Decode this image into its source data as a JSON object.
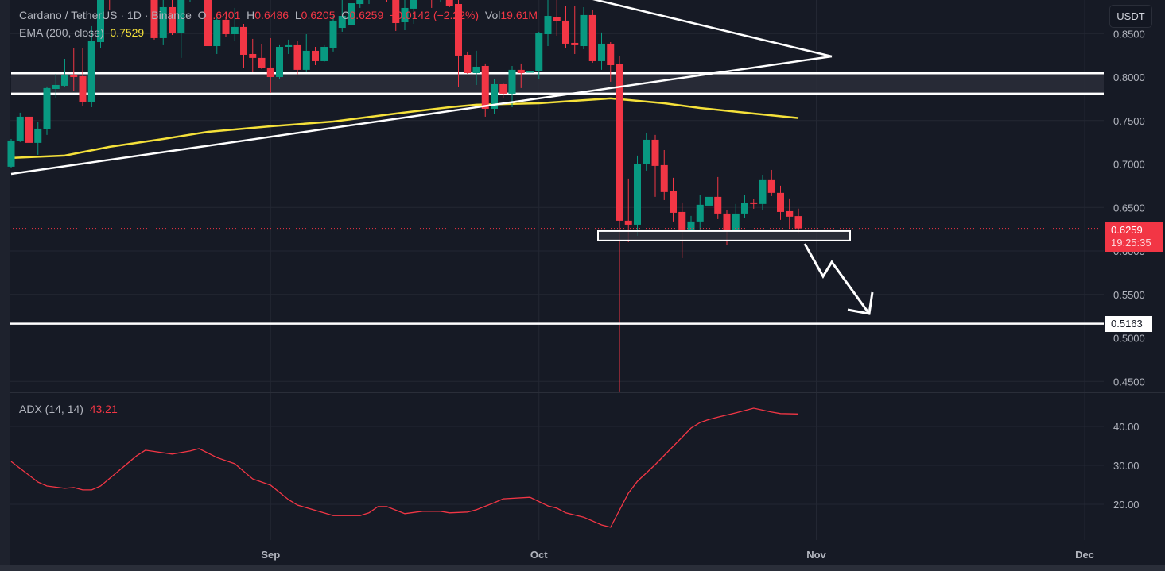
{
  "header": {
    "symbol": "Cardano / TetherUS · 1D · Binance",
    "o_label": "O",
    "o": "0.6401",
    "h_label": "H",
    "h": "0.6486",
    "l_label": "L",
    "l": "0.6205",
    "c_label": "C",
    "c": "0.6259",
    "change": "−0.0142 (−2.22%)",
    "vol_label": "Vol",
    "vol": "19.61M",
    "ema_label": "EMA (200, close)",
    "ema_value": "0.7529"
  },
  "currency_button": "USDT",
  "last_price": {
    "value": "0.6259",
    "countdown": "19:25:35"
  },
  "level_label": "0.5163",
  "adx_legend": {
    "label": "ADX (14, 14)",
    "value": "43.21"
  },
  "colors": {
    "up": "#089981",
    "down": "#f23645",
    "ema": "#f5e13a",
    "adx": "#f23645",
    "drawing": "#ffffff",
    "background": "#161a25"
  },
  "chart_data": [
    {
      "type": "candlestick",
      "title": "Cardano / TetherUS · 1D · Binance",
      "price_ticks": [
        "0.8500",
        "0.8000",
        "0.7500",
        "0.7000",
        "0.6500",
        "0.6000",
        "0.5500",
        "0.5000",
        "0.4500"
      ],
      "x_ticks": [
        "Sep",
        "Oct",
        "Nov",
        "Dec"
      ],
      "ylim": [
        0.44,
        0.89
      ],
      "grid": true,
      "candles_columns": [
        "date",
        "open",
        "high",
        "low",
        "close"
      ],
      "candles": [
        [
          "Aug 3",
          0.6969,
          0.7288,
          0.695,
          0.727
        ],
        [
          "Aug 4",
          0.7261,
          0.759,
          0.7252,
          0.7544
        ],
        [
          "Aug 5",
          0.7544,
          0.7599,
          0.7133,
          0.7243
        ],
        [
          "Aug 6",
          0.7243,
          0.748,
          0.7106,
          0.7407
        ],
        [
          "Aug 7",
          0.7398,
          0.7891,
          0.7334,
          0.7873
        ],
        [
          "Aug 8",
          0.7863,
          0.8037,
          0.7754,
          0.7909
        ],
        [
          "Aug 9",
          0.79,
          0.821,
          0.7891,
          0.8028
        ],
        [
          "Aug 10",
          0.8028,
          0.8338,
          0.7836,
          0.8
        ],
        [
          "Aug 11",
          0.801,
          0.8338,
          0.7663,
          0.7717
        ],
        [
          "Aug 12",
          0.7717,
          0.8585,
          0.7653,
          0.8411
        ],
        [
          "Aug 13",
          0.8402,
          0.9114,
          0.8329,
          0.9023
        ],
        [
          "Aug 14",
          0.916,
          0.9343,
          0.8776,
          0.8932
        ],
        [
          "Aug 15",
          0.9069,
          0.9343,
          0.8913,
          0.9206
        ],
        [
          "Aug 16",
          0.9206,
          0.9434,
          0.8959,
          0.9023
        ],
        [
          "Aug 17",
          0.9023,
          0.9251,
          0.8886,
          0.916
        ],
        [
          "Aug 18",
          0.916,
          0.9297,
          0.8932,
          0.8977
        ],
        [
          "Aug 19",
          0.8977,
          0.9069,
          0.843,
          0.8448
        ],
        [
          "Aug 20",
          0.8448,
          0.8932,
          0.8366,
          0.8804
        ],
        [
          "Aug 21",
          0.8804,
          0.8932,
          0.8484,
          0.8503
        ],
        [
          "Aug 22",
          0.8503,
          0.9069,
          0.822,
          0.8932
        ],
        [
          "Aug 23",
          0.8932,
          0.9251,
          0.8868,
          0.916
        ],
        [
          "Aug 24",
          0.916,
          0.9297,
          0.8932,
          0.9069
        ],
        [
          "Aug 25",
          0.9069,
          0.9251,
          0.8302,
          0.8356
        ],
        [
          "Aug 26",
          0.8356,
          0.8703,
          0.8265,
          0.8658
        ],
        [
          "Aug 27",
          0.8658,
          0.8685,
          0.8466,
          0.8493
        ],
        [
          "Aug 28",
          0.8493,
          0.8795,
          0.8411,
          0.8576
        ],
        [
          "Aug 29",
          0.8576,
          0.8612,
          0.8101,
          0.8256
        ],
        [
          "Aug 30",
          0.8265,
          0.8439,
          0.8055,
          0.822
        ],
        [
          "Aug 31",
          0.822,
          0.8375,
          0.8092,
          0.8101
        ],
        [
          "Sep 1",
          0.811,
          0.8448,
          0.7818,
          0.8
        ],
        [
          "Sep 2",
          0.8,
          0.8366,
          0.7982,
          0.8347
        ],
        [
          "Sep 3",
          0.8347,
          0.843,
          0.8265,
          0.8366
        ],
        [
          "Sep 4",
          0.8366,
          0.8411,
          0.8028,
          0.8083
        ],
        [
          "Sep 5",
          0.8083,
          0.8493,
          0.8055,
          0.8302
        ],
        [
          "Sep 6",
          0.8302,
          0.8347,
          0.8137,
          0.8183
        ],
        [
          "Sep 7",
          0.8183,
          0.8366,
          0.8174,
          0.8347
        ],
        [
          "Sep 8",
          0.8338,
          0.8703,
          0.8293,
          0.8649
        ],
        [
          "Sep 9",
          0.8566,
          0.8886,
          0.8521,
          0.8703
        ],
        [
          "Sep 10",
          0.8594,
          0.8932,
          0.8594,
          0.8849
        ],
        [
          "Sep 11",
          0.884,
          0.9069,
          0.8795,
          0.9023
        ],
        [
          "Sep 12",
          0.9023,
          0.9206,
          0.884,
          0.916
        ],
        [
          "Sep 13",
          0.916,
          0.9251,
          0.8932,
          0.9069
        ],
        [
          "Sep 14",
          0.8977,
          0.9023,
          0.8859,
          0.8886
        ],
        [
          "Sep 15",
          0.8886,
          0.8977,
          0.853,
          0.8621
        ],
        [
          "Sep 16",
          0.863,
          0.8886,
          0.8539,
          0.8795
        ],
        [
          "Sep 17",
          0.8786,
          0.8977,
          0.8612,
          0.8932
        ],
        [
          "Sep 18",
          0.8932,
          0.916,
          0.8886,
          0.9114
        ],
        [
          "Sep 19",
          0.9114,
          0.9206,
          0.8795,
          0.8977
        ],
        [
          "Sep 20",
          0.8932,
          0.9069,
          0.8868,
          0.8996
        ],
        [
          "Sep 21",
          0.8996,
          0.9069,
          0.8804,
          0.8822
        ],
        [
          "Sep 22",
          0.884,
          0.8932,
          0.7882,
          0.8247
        ],
        [
          "Sep 23",
          0.8256,
          0.8293,
          0.8037,
          0.8046
        ],
        [
          "Sep 24",
          0.8046,
          0.8302,
          0.7909,
          0.8119
        ],
        [
          "Sep 25",
          0.8128,
          0.8156,
          0.7544,
          0.7635
        ],
        [
          "Sep 26",
          0.7635,
          0.7973,
          0.7571,
          0.7918
        ],
        [
          "Sep 27",
          0.7918,
          0.7937,
          0.7763,
          0.7809
        ],
        [
          "Sep 28",
          0.7809,
          0.8128,
          0.7653,
          0.8083
        ],
        [
          "Sep 29",
          0.8083,
          0.8156,
          0.7873,
          0.8046
        ],
        [
          "Sep 30",
          0.8055,
          0.8128,
          0.779,
          0.8064
        ],
        [
          "Oct 1",
          0.8064,
          0.8521,
          0.7973,
          0.8503
        ],
        [
          "Oct 2",
          0.8493,
          0.8886,
          0.8356,
          0.8703
        ],
        [
          "Oct 3",
          0.8694,
          0.8886,
          0.8475,
          0.864
        ],
        [
          "Oct 4",
          0.8649,
          0.8822,
          0.8329,
          0.8384
        ],
        [
          "Oct 5",
          0.8393,
          0.8822,
          0.8265,
          0.8366
        ],
        [
          "Oct 6",
          0.8356,
          0.8804,
          0.832,
          0.8713
        ],
        [
          "Oct 7",
          0.8713,
          0.8767,
          0.8165,
          0.8183
        ],
        [
          "Oct 8",
          0.8183,
          0.8512,
          0.8083,
          0.8384
        ],
        [
          "Oct 9",
          0.8384,
          0.8402,
          0.7946,
          0.8137
        ],
        [
          "Oct 10",
          0.8147,
          0.8238,
          0.4385,
          0.6348
        ],
        [
          "Oct 11",
          0.6348,
          0.6832,
          0.6101,
          0.6302
        ],
        [
          "Oct 12",
          0.6302,
          0.7097,
          0.6174,
          0.6996
        ],
        [
          "Oct 13",
          0.6996,
          0.7361,
          0.6923,
          0.7279
        ],
        [
          "Oct 14",
          0.7279,
          0.7334,
          0.6622,
          0.6978
        ],
        [
          "Oct 15",
          0.6987,
          0.716,
          0.6585,
          0.6677
        ],
        [
          "Oct 16",
          0.6686,
          0.6841,
          0.6339,
          0.6439
        ],
        [
          "Oct 17",
          0.6448,
          0.6558,
          0.5919,
          0.6247
        ],
        [
          "Oct 18",
          0.6247,
          0.6403,
          0.622,
          0.6339
        ],
        [
          "Oct 19",
          0.6339,
          0.664,
          0.622,
          0.6531
        ],
        [
          "Oct 20",
          0.6521,
          0.6759,
          0.6403,
          0.6622
        ],
        [
          "Oct 21",
          0.6622,
          0.685,
          0.6366,
          0.643
        ],
        [
          "Oct 22",
          0.643,
          0.6467,
          0.6065,
          0.6229
        ],
        [
          "Oct 23",
          0.6229,
          0.654,
          0.622,
          0.643
        ],
        [
          "Oct 24",
          0.643,
          0.664,
          0.6384,
          0.6549
        ],
        [
          "Oct 25",
          0.6558,
          0.6594,
          0.6485,
          0.654
        ],
        [
          "Oct 26",
          0.654,
          0.6877,
          0.6467,
          0.6814
        ],
        [
          "Oct 27",
          0.6814,
          0.6932,
          0.6631,
          0.6668
        ],
        [
          "Oct 28",
          0.6668,
          0.675,
          0.6357,
          0.6448
        ],
        [
          "Oct 29",
          0.6457,
          0.6604,
          0.6257,
          0.6394
        ],
        [
          "Oct 30",
          0.6401,
          0.6486,
          0.6205,
          0.6259
        ]
      ],
      "ema_200": [
        [
          "Aug 3",
          0.7069
        ],
        [
          "Aug 9",
          0.7097
        ],
        [
          "Aug 14",
          0.7197
        ],
        [
          "Aug 20",
          0.7288
        ],
        [
          "Aug 25",
          0.737
        ],
        [
          "Sep 1",
          0.7434
        ],
        [
          "Sep 8",
          0.7489
        ],
        [
          "Sep 15",
          0.758
        ],
        [
          "Sep 21",
          0.7653
        ],
        [
          "Sep 24",
          0.7681
        ],
        [
          "Oct 1",
          0.7699
        ],
        [
          "Oct 5",
          0.7727
        ],
        [
          "Oct 9",
          0.7754
        ],
        [
          "Oct 11",
          0.7736
        ],
        [
          "Oct 15",
          0.7699
        ],
        [
          "Oct 19",
          0.7644
        ],
        [
          "Oct 25",
          0.758
        ],
        [
          "Oct 30",
          0.7529
        ]
      ],
      "resistance_zone": [
        0.7809,
        0.8043
      ],
      "support_box": [
        0.612,
        0.6229
      ],
      "target_level": 0.5163,
      "last_price": 0.6259
    },
    {
      "type": "line",
      "title": "ADX (14, 14)",
      "y_ticks": [
        "40.00",
        "30.00",
        "20.00"
      ],
      "ylim": [
        10,
        48
      ],
      "adx": [
        [
          "Aug 3",
          31.0
        ],
        [
          "Aug 6",
          25.7
        ],
        [
          "Aug 7",
          24.7
        ],
        [
          "Aug 9",
          24.1
        ],
        [
          "Aug 10",
          24.3
        ],
        [
          "Aug 11",
          23.7
        ],
        [
          "Aug 12",
          23.7
        ],
        [
          "Aug 13",
          24.7
        ],
        [
          "Aug 17",
          32.4
        ],
        [
          "Aug 18",
          33.9
        ],
        [
          "Aug 21",
          32.9
        ],
        [
          "Aug 23",
          33.7
        ],
        [
          "Aug 24",
          34.3
        ],
        [
          "Aug 26",
          32.0
        ],
        [
          "Aug 28",
          30.4
        ],
        [
          "Aug 30",
          26.5
        ],
        [
          "Sep 1",
          24.9
        ],
        [
          "Sep 3",
          21.2
        ],
        [
          "Sep 4",
          19.8
        ],
        [
          "Sep 8",
          17.1
        ],
        [
          "Sep 11",
          17.1
        ],
        [
          "Sep 12",
          17.8
        ],
        [
          "Sep 13",
          19.4
        ],
        [
          "Sep 14",
          19.4
        ],
        [
          "Sep 16",
          17.6
        ],
        [
          "Sep 18",
          18.2
        ],
        [
          "Sep 20",
          18.2
        ],
        [
          "Sep 21",
          17.8
        ],
        [
          "Sep 23",
          18.0
        ],
        [
          "Sep 24",
          18.6
        ],
        [
          "Sep 26",
          20.4
        ],
        [
          "Sep 27",
          21.4
        ],
        [
          "Sep 30",
          21.8
        ],
        [
          "Oct 2",
          19.6
        ],
        [
          "Oct 3",
          19.0
        ],
        [
          "Oct 4",
          17.8
        ],
        [
          "Oct 6",
          16.7
        ],
        [
          "Oct 8",
          14.7
        ],
        [
          "Oct 9",
          14.1
        ],
        [
          "Oct 11",
          22.9
        ],
        [
          "Oct 12",
          25.9
        ],
        [
          "Oct 14",
          30.2
        ],
        [
          "Oct 18",
          39.6
        ],
        [
          "Oct 19",
          41.0
        ],
        [
          "Oct 20",
          41.8
        ],
        [
          "Oct 21",
          42.4
        ],
        [
          "Oct 23",
          43.5
        ],
        [
          "Oct 25",
          44.7
        ],
        [
          "Oct 27",
          43.7
        ],
        [
          "Oct 28",
          43.3
        ],
        [
          "Oct 30",
          43.21
        ]
      ]
    }
  ]
}
